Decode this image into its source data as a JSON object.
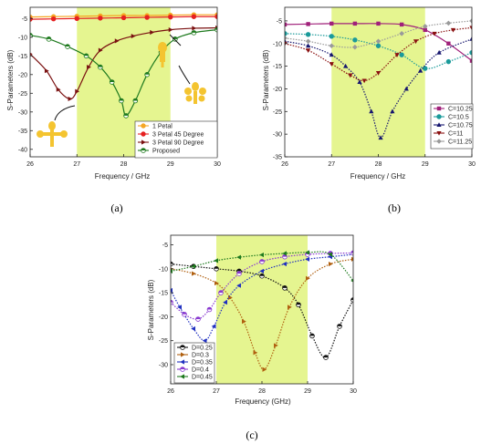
{
  "captions": [
    "(a)",
    "(b)",
    "(c)"
  ],
  "chart_data": [
    {
      "id": "a",
      "type": "line",
      "xlabel": "Frequency / GHz",
      "ylabel": "S-Parameters (dB)",
      "xlim": [
        26,
        30
      ],
      "ylim": [
        -42,
        -2
      ],
      "xticks": [
        26,
        27,
        28,
        29,
        30
      ],
      "xtick_labels": [
        "26",
        "27",
        "28",
        "29",
        "30"
      ],
      "yticks": [
        -40,
        -35,
        -30,
        -25,
        -20,
        -15,
        -10,
        -5
      ],
      "ytick_labels": [
        "-40",
        "-35",
        "-30",
        "-25",
        "-20",
        "-15",
        "-10",
        "-5"
      ],
      "highlight": [
        27,
        29
      ],
      "highlight_color": "#e5f590",
      "legend_position": "bottom-right",
      "series": [
        {
          "name": "1 Petal",
          "color": "#f5a623",
          "marker": "circle",
          "x": [
            26,
            26.5,
            27,
            27.5,
            28,
            28.5,
            29,
            29.5,
            30
          ],
          "y": [
            -4.6,
            -4.5,
            -4.4,
            -4.3,
            -4.2,
            -4.2,
            -4.1,
            -4.0,
            -4.0
          ]
        },
        {
          "name": "3 Petal 45 Degree",
          "color": "#e62020",
          "marker": "circle",
          "x": [
            26,
            26.5,
            27,
            27.5,
            28,
            28.5,
            29,
            29.5,
            30
          ],
          "y": [
            -5.2,
            -5.1,
            -5.0,
            -4.9,
            -4.8,
            -4.7,
            -4.6,
            -4.5,
            -4.5
          ]
        },
        {
          "name": "3 Petal 90 Degree",
          "color": "#7a1010",
          "marker": "triangle-right",
          "x": [
            26,
            26.35,
            26.6,
            26.85,
            27.0,
            27.25,
            27.5,
            27.85,
            28.2,
            28.6,
            29.0,
            29.5,
            30
          ],
          "y": [
            -14.5,
            -19,
            -24,
            -26.5,
            -24.5,
            -18,
            -13.5,
            -11,
            -9.7,
            -8.7,
            -8.0,
            -7.6,
            -7.5
          ]
        },
        {
          "name": "Proposed",
          "color": "#1e7a1e",
          "marker": "half-circle",
          "x": [
            26,
            26.4,
            26.8,
            27.2,
            27.5,
            27.75,
            27.95,
            28.05,
            28.25,
            28.5,
            28.8,
            29.1,
            29.5,
            30
          ],
          "y": [
            -9.5,
            -10.5,
            -12.5,
            -15,
            -18,
            -22,
            -27,
            -31,
            -27,
            -20,
            -14,
            -10.5,
            -8.8,
            -8.0
          ]
        }
      ]
    },
    {
      "id": "b",
      "type": "line",
      "xlabel": "Frequency / GHz",
      "ylabel": "S-Parameters (dB)",
      "xlim": [
        26,
        30
      ],
      "ylim": [
        -35,
        -2
      ],
      "xticks": [
        26,
        27,
        28,
        29,
        30
      ],
      "xtick_labels": [
        "26",
        "27",
        "28",
        "29",
        "30"
      ],
      "yticks": [
        -35,
        -30,
        -25,
        -20,
        -15,
        -10,
        -5
      ],
      "ytick_labels": [
        "-35",
        "-30",
        "-25",
        "-20",
        "-15",
        "-10",
        "-5"
      ],
      "highlight": [
        27,
        29
      ],
      "highlight_color": "#e5f590",
      "legend_position": "bottom-right",
      "series": [
        {
          "name": "C=10.25",
          "color": "#a0207a",
          "marker": "square",
          "x": [
            26,
            26.5,
            27,
            27.5,
            28,
            28.5,
            29,
            29.5,
            30
          ],
          "y": [
            -5.8,
            -5.7,
            -5.6,
            -5.6,
            -5.6,
            -5.8,
            -7.0,
            -10,
            -13.8
          ]
        },
        {
          "name": "C=10.5",
          "color": "#1a9a9a",
          "marker": "circle",
          "x": [
            26,
            26.5,
            27,
            27.5,
            28,
            28.5,
            29,
            29.5,
            30
          ],
          "y": [
            -7.8,
            -8.0,
            -8.4,
            -9.2,
            -10.5,
            -12.5,
            -15.5,
            -14,
            -12
          ]
        },
        {
          "name": "C=10.75",
          "color": "#16166e",
          "marker": "triangle-up",
          "x": [
            26,
            26.5,
            27,
            27.3,
            27.6,
            27.85,
            28.05,
            28.3,
            28.6,
            28.9,
            29.3,
            30
          ],
          "y": [
            -9.5,
            -10.5,
            -12.5,
            -15,
            -18.5,
            -25,
            -30.8,
            -25,
            -20,
            -16,
            -12,
            -9
          ]
        },
        {
          "name": "C=11",
          "color": "#8a1010",
          "marker": "triangle-down",
          "x": [
            26,
            26.5,
            27,
            27.4,
            27.7,
            28,
            28.4,
            28.8,
            29.2,
            29.6,
            30
          ],
          "y": [
            -10,
            -11.5,
            -14.5,
            -17,
            -18.2,
            -16.5,
            -12.5,
            -9.5,
            -7.8,
            -7.0,
            -6.5
          ]
        },
        {
          "name": "C=11.25",
          "color": "#9a9a9a",
          "marker": "diamond",
          "x": [
            26,
            26.5,
            27,
            27.5,
            28,
            28.5,
            29,
            29.5,
            30
          ],
          "y": [
            -8.8,
            -9.5,
            -10.5,
            -10.8,
            -9.5,
            -7.8,
            -6.2,
            -5.5,
            -5.0
          ]
        }
      ]
    },
    {
      "id": "c",
      "type": "line",
      "xlabel": "Frequency (GHz)",
      "ylabel": "S-Parameters (dB)",
      "xlim": [
        26,
        30
      ],
      "ylim": [
        -34,
        -3
      ],
      "xticks": [
        26,
        27,
        28,
        29,
        30
      ],
      "xtick_labels": [
        "26",
        "27",
        "28",
        "29",
        "30"
      ],
      "yticks": [
        -30,
        -25,
        -20,
        -15,
        -10,
        -5
      ],
      "ytick_labels": [
        "-30",
        "-25",
        "-20",
        "-15",
        "-10",
        "-5"
      ],
      "highlight": [
        27,
        29
      ],
      "highlight_color": "#e5f590",
      "legend_position": "bottom-left",
      "series": [
        {
          "name": "D=0.25",
          "color": "#111111",
          "marker": "half-circle",
          "x": [
            26,
            26.5,
            27,
            27.5,
            28,
            28.5,
            28.8,
            29.1,
            29.4,
            29.7,
            30
          ],
          "y": [
            -9,
            -9.5,
            -10,
            -10.5,
            -11.5,
            -14,
            -17.5,
            -24,
            -28.5,
            -22,
            -16.5
          ]
        },
        {
          "name": "D=0.3",
          "color": "#b06010",
          "marker": "triangle-right",
          "x": [
            26,
            26.5,
            27,
            27.3,
            27.6,
            27.85,
            28.05,
            28.3,
            28.6,
            29,
            29.5,
            30
          ],
          "y": [
            -10,
            -11,
            -13,
            -16,
            -21,
            -27.5,
            -31,
            -26,
            -18,
            -12,
            -9,
            -8
          ]
        },
        {
          "name": "D=0.35",
          "color": "#2030c0",
          "marker": "triangle-left",
          "x": [
            26,
            26.2,
            26.5,
            26.75,
            26.95,
            27.2,
            27.5,
            28,
            28.5,
            29,
            29.5,
            30
          ],
          "y": [
            -14.5,
            -18,
            -22.5,
            -25,
            -22,
            -17,
            -13.5,
            -10.5,
            -9,
            -8,
            -7.5,
            -7
          ]
        },
        {
          "name": "D=0.4",
          "color": "#8a3ad0",
          "marker": "half-circle",
          "x": [
            26,
            26.3,
            26.6,
            26.85,
            27.1,
            27.5,
            28,
            28.5,
            29,
            29.5,
            30
          ],
          "y": [
            -17,
            -19.5,
            -20.5,
            -18.5,
            -15,
            -11,
            -8.5,
            -7.5,
            -7,
            -6.8,
            -6.7
          ]
        },
        {
          "name": "D=0.45",
          "color": "#1e7a1e",
          "marker": "triangle-left",
          "x": [
            26,
            26.5,
            27,
            27.5,
            28,
            28.5,
            29,
            29.5,
            30
          ],
          "y": [
            -10.5,
            -9.5,
            -8.3,
            -7.6,
            -7.1,
            -6.8,
            -6.6,
            -7.0,
            -12.5
          ]
        }
      ]
    }
  ]
}
